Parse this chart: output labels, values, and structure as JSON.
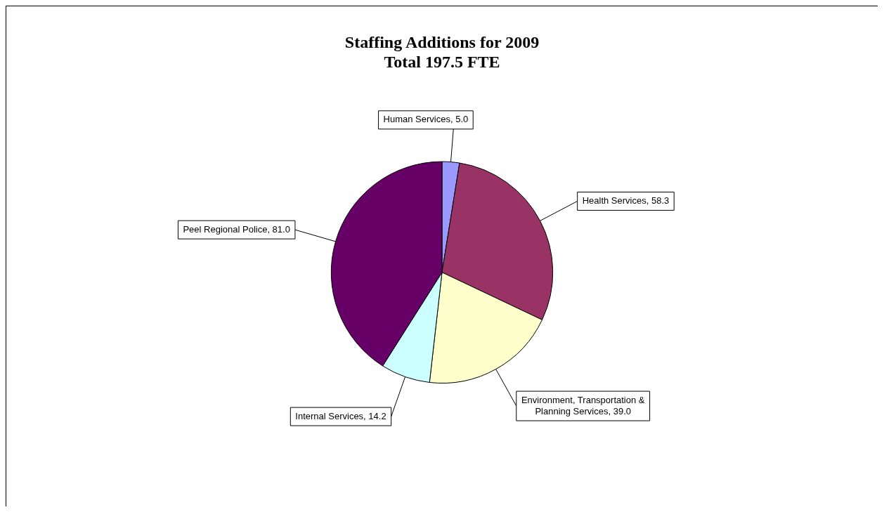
{
  "chart_data": {
    "type": "pie",
    "title": "Staffing Additions for 2009",
    "subtitle": "Total 197.5 FTE",
    "categories": [
      "Human Services",
      "Health Services",
      "Environment, Transportation & Planning Services",
      "Internal Services",
      "Peel Regional Police"
    ],
    "values": [
      5.0,
      58.3,
      39.0,
      14.2,
      81.0
    ],
    "value_labels": [
      "5.0",
      "58.3",
      "39.0",
      "14.2",
      "81.0"
    ],
    "colors": [
      "#9999ff",
      "#993366",
      "#ffffcc",
      "#ccffff",
      "#660066"
    ],
    "legend": false
  }
}
